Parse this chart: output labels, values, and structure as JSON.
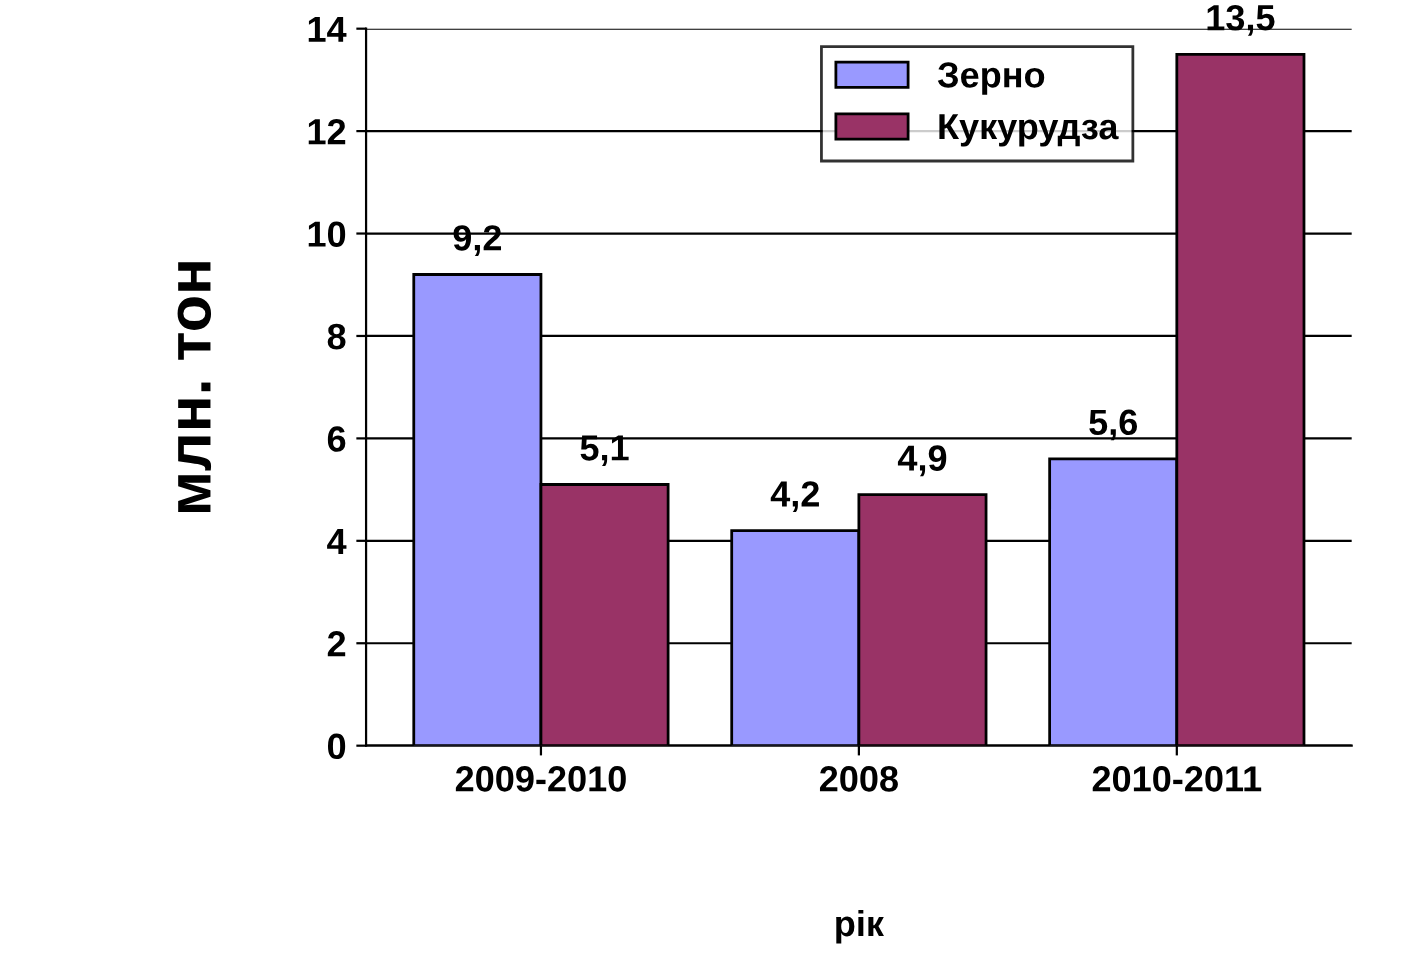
{
  "chart_data": {
    "type": "bar",
    "xlabel": "рік",
    "ylabel": "млн. тон",
    "categories": [
      "2009-2010",
      "2008",
      "2010-2011"
    ],
    "series": [
      {
        "name": "Зерно",
        "color": "#9999ff",
        "values": [
          9.2,
          4.2,
          5.6
        ],
        "value_labels": [
          "9,2",
          "4,2",
          "5,6"
        ]
      },
      {
        "name": "Кукурудза",
        "color": "#993366",
        "values": [
          5.1,
          4.9,
          13.5
        ],
        "value_labels": [
          "5,1",
          "4,9",
          "13,5"
        ]
      }
    ],
    "ylim": [
      0,
      14
    ],
    "yticks": [
      0,
      2,
      4,
      6,
      8,
      10,
      12,
      14
    ],
    "grid": "y",
    "legend": "top"
  }
}
